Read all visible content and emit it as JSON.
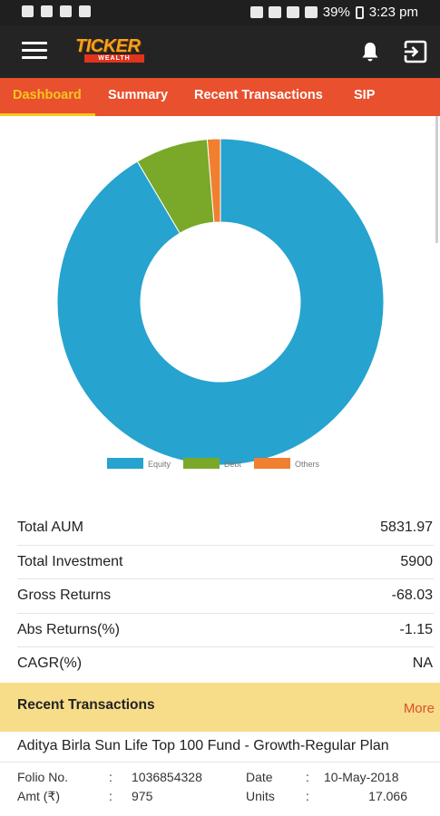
{
  "status_bar": {
    "battery": "39%",
    "time": "3:23 pm"
  },
  "app": {
    "logo_text": "TICKER",
    "logo_subtext": "WEALTH"
  },
  "tabs": [
    {
      "label": "Dashboard",
      "active": true
    },
    {
      "label": "Summary",
      "active": false
    },
    {
      "label": "Recent Transactions",
      "active": false
    },
    {
      "label": "SIP",
      "active": false
    }
  ],
  "chart_data": {
    "type": "pie",
    "donut": true,
    "categories": [
      "Equity",
      "Debt",
      "Others"
    ],
    "values": [
      91.5,
      7.2,
      1.3
    ],
    "colors": [
      "#26a3cf",
      "#7aa829",
      "#f07f30"
    ],
    "legend_position": "bottom"
  },
  "stats": [
    {
      "label": "Total AUM",
      "value": "5831.97"
    },
    {
      "label": "Total Investment",
      "value": "5900"
    },
    {
      "label": "Gross Returns",
      "value": "-68.03"
    },
    {
      "label": "Abs Returns(%)",
      "value": "-1.15"
    },
    {
      "label": "CAGR(%)",
      "value": "NA"
    }
  ],
  "recent_transactions": {
    "title": "Recent Transactions",
    "more_label": "More",
    "items": [
      {
        "fund_name": "Aditya Birla Sun Life Top 100 Fund - Growth-Regular Plan",
        "folio_label": "Folio No.",
        "folio_value": "1036854328",
        "date_label": "Date",
        "date_value": "10-May-2018",
        "amt_label": "Amt (₹)",
        "amt_value": "975",
        "units_label": "Units",
        "units_value": "17.066"
      }
    ]
  }
}
